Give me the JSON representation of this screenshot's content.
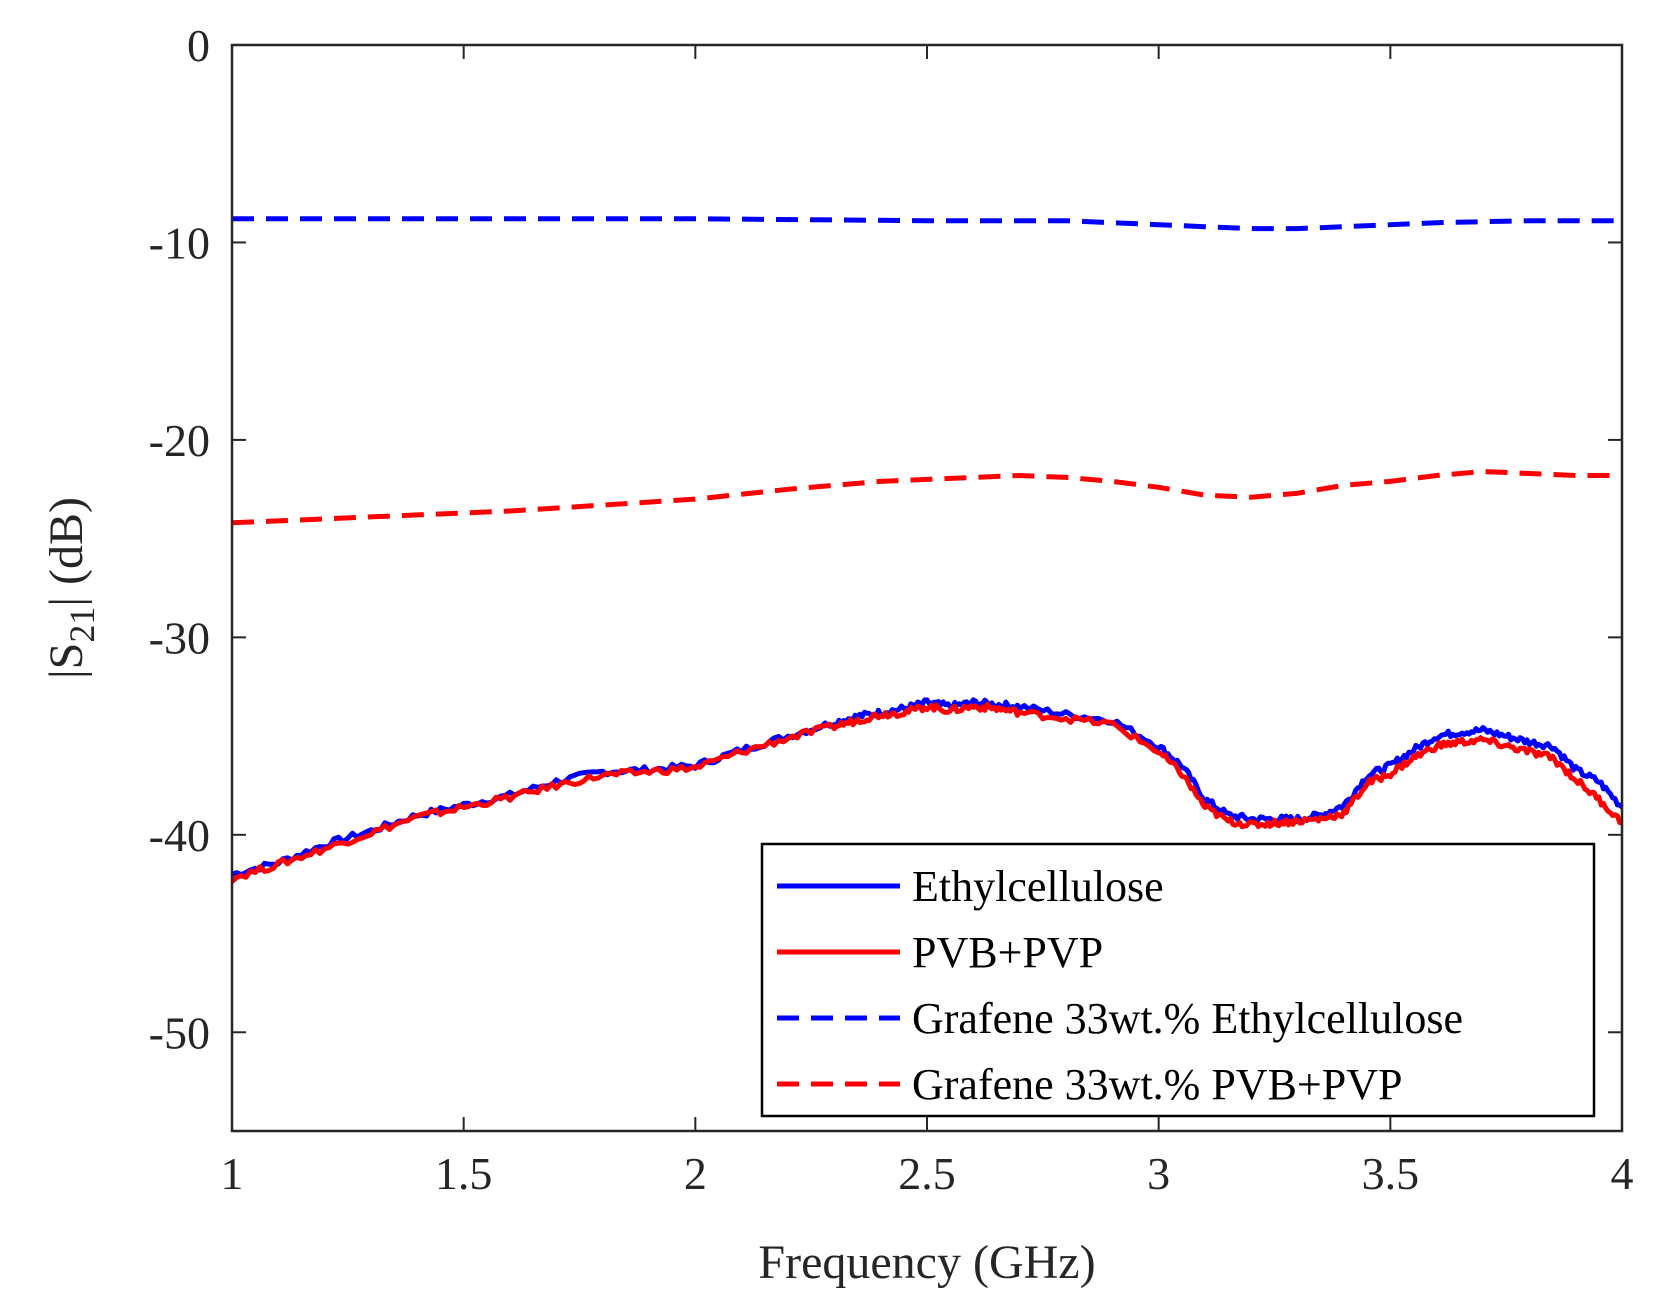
{
  "chart_data": {
    "type": "line",
    "title": "",
    "xlabel": "Frequency (GHz)",
    "ylabel": {
      "prefix": "|S",
      "subscript": "21",
      "suffix": "| (dB)"
    },
    "xlim": [
      1,
      4
    ],
    "ylim": [
      -55,
      0
    ],
    "grid": false,
    "xticks": [
      1,
      1.5,
      2,
      2.5,
      3,
      3.5,
      4
    ],
    "xtick_labels": [
      "1",
      "1.5",
      "2",
      "2.5",
      "3",
      "3.5",
      "4"
    ],
    "yticks": [
      0,
      -10,
      -20,
      -30,
      -40,
      -50
    ],
    "ytick_labels": [
      "0",
      "-10",
      "-20",
      "-30",
      "-40",
      "-50"
    ],
    "legend_position": "bottom-right",
    "series": [
      {
        "name": "Ethylcellulose",
        "color": "#0000ff",
        "style": "solid",
        "x": [
          1.0,
          1.1,
          1.2,
          1.3,
          1.4,
          1.5,
          1.6,
          1.7,
          1.8,
          1.9,
          2.0,
          2.1,
          2.2,
          2.3,
          2.35,
          2.4,
          2.45,
          2.5,
          2.55,
          2.6,
          2.65,
          2.7,
          2.8,
          2.9,
          3.0,
          3.05,
          3.1,
          3.15,
          3.2,
          3.25,
          3.3,
          3.35,
          3.4,
          3.45,
          3.5,
          3.55,
          3.6,
          3.65,
          3.7,
          3.75,
          3.8,
          3.85,
          3.9,
          3.95,
          4.0
        ],
        "y": [
          -42.0,
          -41.4,
          -40.5,
          -39.8,
          -39.0,
          -38.5,
          -38.0,
          -37.3,
          -36.8,
          -36.7,
          -36.5,
          -35.7,
          -35.0,
          -34.3,
          -34.0,
          -33.8,
          -33.6,
          -33.3,
          -33.5,
          -33.3,
          -33.4,
          -33.5,
          -33.9,
          -34.2,
          -35.5,
          -36.5,
          -38.2,
          -39.0,
          -39.2,
          -39.2,
          -39.2,
          -39.0,
          -38.5,
          -37.0,
          -36.5,
          -35.7,
          -35.0,
          -34.8,
          -34.7,
          -35.0,
          -35.3,
          -35.5,
          -36.7,
          -37.3,
          -38.6
        ]
      },
      {
        "name": "PVB+PVP",
        "color": "#ff0000",
        "style": "solid",
        "x": [
          1.0,
          1.1,
          1.2,
          1.3,
          1.4,
          1.5,
          1.6,
          1.7,
          1.8,
          1.9,
          2.0,
          2.1,
          2.2,
          2.3,
          2.35,
          2.4,
          2.45,
          2.5,
          2.55,
          2.6,
          2.65,
          2.7,
          2.8,
          2.9,
          3.0,
          3.05,
          3.1,
          3.15,
          3.2,
          3.25,
          3.3,
          3.35,
          3.4,
          3.45,
          3.5,
          3.55,
          3.6,
          3.65,
          3.7,
          3.75,
          3.8,
          3.85,
          3.9,
          3.95,
          4.0
        ],
        "y": [
          -42.2,
          -41.5,
          -40.7,
          -39.9,
          -39.1,
          -38.6,
          -38.1,
          -37.5,
          -37.0,
          -36.8,
          -36.6,
          -35.8,
          -35.1,
          -34.5,
          -34.2,
          -33.9,
          -33.8,
          -33.5,
          -33.7,
          -33.5,
          -33.6,
          -33.8,
          -34.1,
          -34.4,
          -35.8,
          -36.9,
          -38.6,
          -39.3,
          -39.5,
          -39.4,
          -39.3,
          -39.2,
          -38.9,
          -37.4,
          -36.9,
          -36.1,
          -35.5,
          -35.3,
          -35.2,
          -35.5,
          -35.8,
          -36.1,
          -37.2,
          -38.2,
          -39.4
        ]
      },
      {
        "name": "Grafene 33wt.% Ethylcellulose",
        "color": "#0000ff",
        "style": "dashed",
        "x": [
          1.0,
          1.5,
          2.0,
          2.5,
          2.8,
          3.0,
          3.1,
          3.2,
          3.3,
          3.4,
          3.6,
          3.8,
          4.0
        ],
        "y": [
          -8.8,
          -8.8,
          -8.8,
          -8.9,
          -8.9,
          -9.1,
          -9.2,
          -9.3,
          -9.3,
          -9.2,
          -9.0,
          -8.9,
          -8.9
        ]
      },
      {
        "name": "Grafene 33wt.% PVB+PVP",
        "color": "#ff0000",
        "style": "dashed",
        "x": [
          1.0,
          1.2,
          1.4,
          1.6,
          1.8,
          2.0,
          2.2,
          2.4,
          2.6,
          2.7,
          2.8,
          2.9,
          3.0,
          3.1,
          3.2,
          3.3,
          3.4,
          3.5,
          3.6,
          3.7,
          3.8,
          3.9,
          4.0
        ],
        "y": [
          -24.2,
          -24.0,
          -23.8,
          -23.6,
          -23.3,
          -23.0,
          -22.5,
          -22.1,
          -21.9,
          -21.8,
          -21.9,
          -22.1,
          -22.4,
          -22.8,
          -22.9,
          -22.7,
          -22.3,
          -22.1,
          -21.8,
          -21.6,
          -21.7,
          -21.8,
          -21.8
        ]
      }
    ]
  }
}
